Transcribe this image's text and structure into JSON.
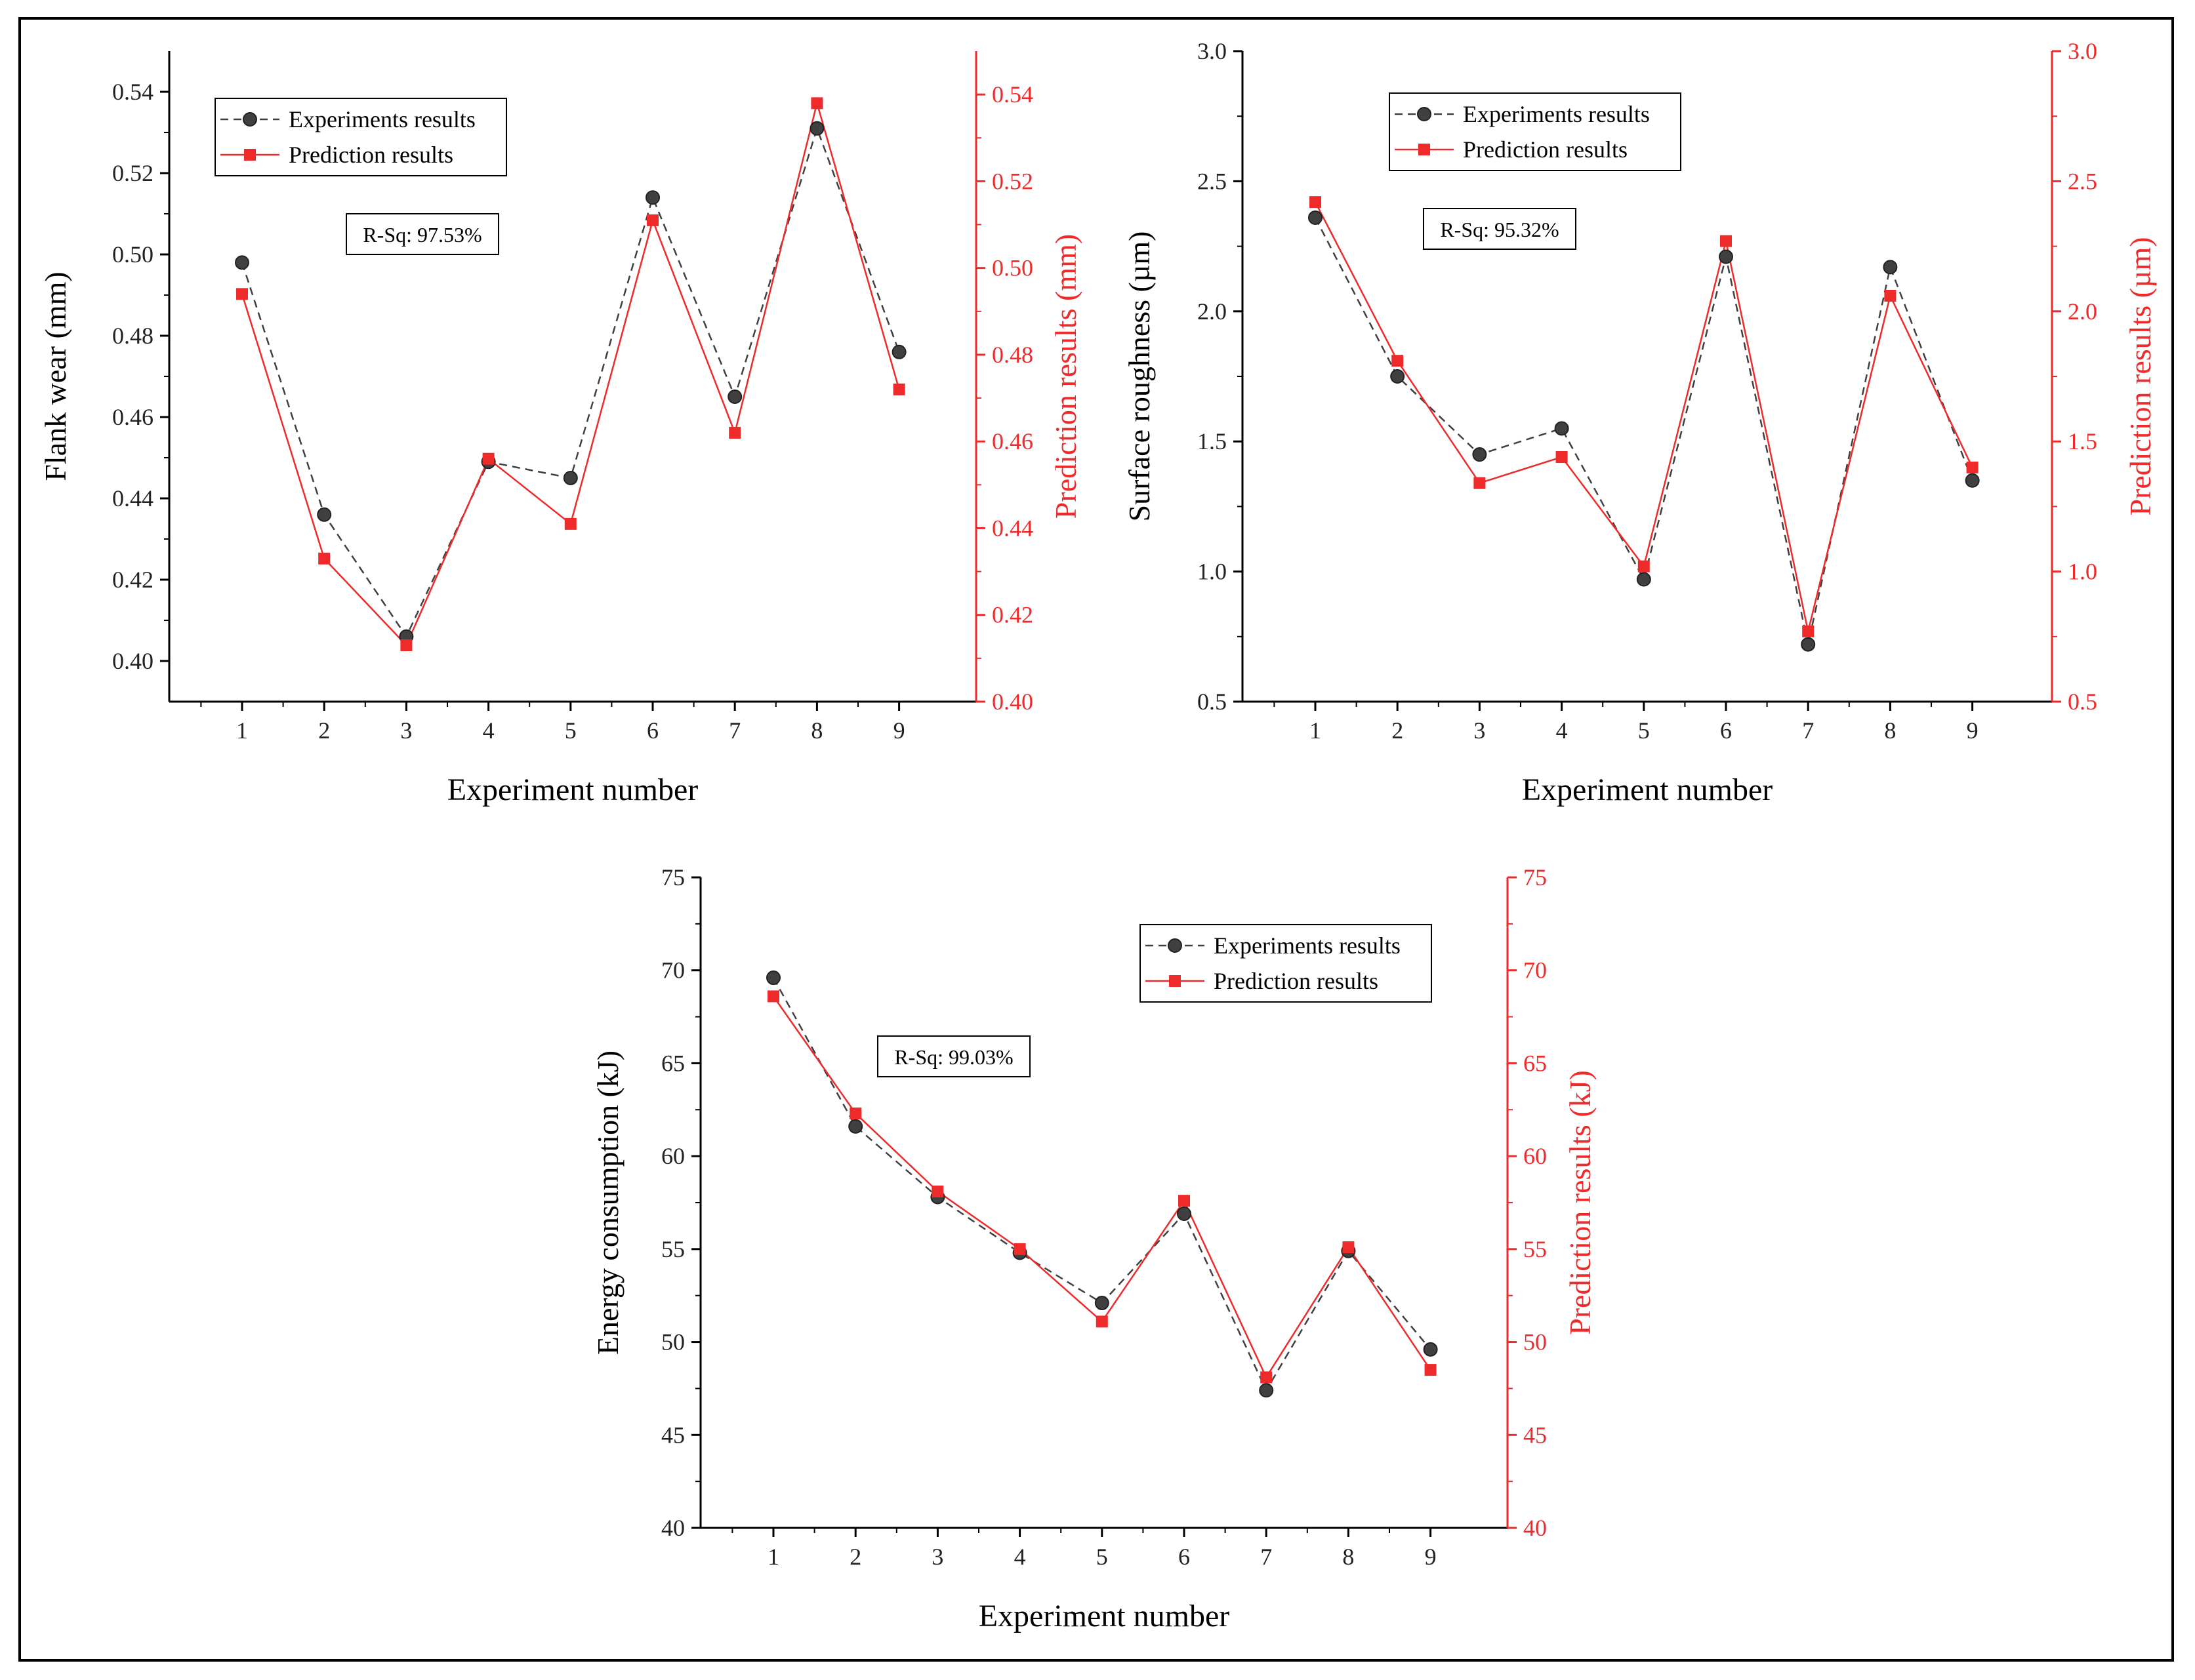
{
  "colors": {
    "experiment": "#404040",
    "prediction": "#ee2a2a",
    "axis": "#000000"
  },
  "legend": {
    "experiment_label": "Experiments results",
    "prediction_label": "Prediction results"
  },
  "chart_data": [
    {
      "type": "line",
      "title": "",
      "xlabel": "Experiment number",
      "ylabel": "Flank wear (mm)",
      "y2label": "Prediction results (mm)",
      "x": [
        1,
        2,
        3,
        4,
        5,
        6,
        7,
        8,
        9
      ],
      "ylim": [
        0.39,
        0.55
      ],
      "y2lim": [
        0.4,
        0.55
      ],
      "yticks": [
        "0.40",
        "0.42",
        "0.44",
        "0.46",
        "0.48",
        "0.50",
        "0.52",
        "0.54"
      ],
      "y2ticks": [
        "0.40",
        "0.42",
        "0.44",
        "0.46",
        "0.48",
        "0.50",
        "0.52",
        "0.54"
      ],
      "annotation": "R-Sq: 97.53%",
      "series": [
        {
          "name": "Experiments results",
          "axis": "left",
          "values": [
            0.498,
            0.436,
            0.406,
            0.449,
            0.445,
            0.514,
            0.465,
            0.531,
            0.476
          ]
        },
        {
          "name": "Prediction results",
          "axis": "right",
          "values": [
            0.494,
            0.433,
            0.413,
            0.456,
            0.441,
            0.511,
            0.462,
            0.538,
            0.472
          ]
        }
      ]
    },
    {
      "type": "line",
      "title": "",
      "xlabel": "Experiment number",
      "ylabel": "Surface roughness (µm)",
      "y2label": "Prediction results (µm)",
      "x": [
        1,
        2,
        3,
        4,
        5,
        6,
        7,
        8,
        9
      ],
      "ylim": [
        0.5,
        3.0
      ],
      "y2lim": [
        0.5,
        3.0
      ],
      "yticks": [
        "0.5",
        "1.0",
        "1.5",
        "2.0",
        "2.5",
        "3.0"
      ],
      "y2ticks": [
        "0.5",
        "1.0",
        "1.5",
        "2.0",
        "2.5",
        "3.0"
      ],
      "annotation": "R-Sq: 95.32%",
      "series": [
        {
          "name": "Experiments results",
          "axis": "left",
          "values": [
            2.36,
            1.75,
            1.45,
            1.55,
            0.97,
            2.21,
            0.72,
            2.17,
            1.35
          ]
        },
        {
          "name": "Prediction results",
          "axis": "right",
          "values": [
            2.42,
            1.81,
            1.34,
            1.44,
            1.02,
            2.27,
            0.77,
            2.06,
            1.4
          ]
        }
      ]
    },
    {
      "type": "line",
      "title": "",
      "xlabel": "Experiment number",
      "ylabel": "Energy consumption (kJ)",
      "y2label": "Prediction results (kJ)",
      "x": [
        1,
        2,
        3,
        4,
        5,
        6,
        7,
        8,
        9
      ],
      "ylim": [
        40,
        75
      ],
      "y2lim": [
        40,
        75
      ],
      "yticks": [
        "40",
        "45",
        "50",
        "55",
        "60",
        "65",
        "70",
        "75"
      ],
      "y2ticks": [
        "40",
        "45",
        "50",
        "55",
        "60",
        "65",
        "70",
        "75"
      ],
      "annotation": "R-Sq: 99.03%",
      "series": [
        {
          "name": "Experiments results",
          "axis": "left",
          "values": [
            69.6,
            61.6,
            57.8,
            54.8,
            52.1,
            56.9,
            47.4,
            54.9,
            49.6
          ]
        },
        {
          "name": "Prediction results",
          "axis": "right",
          "values": [
            68.6,
            62.3,
            58.1,
            55.0,
            51.1,
            57.6,
            48.1,
            55.1,
            48.5
          ]
        }
      ]
    }
  ]
}
